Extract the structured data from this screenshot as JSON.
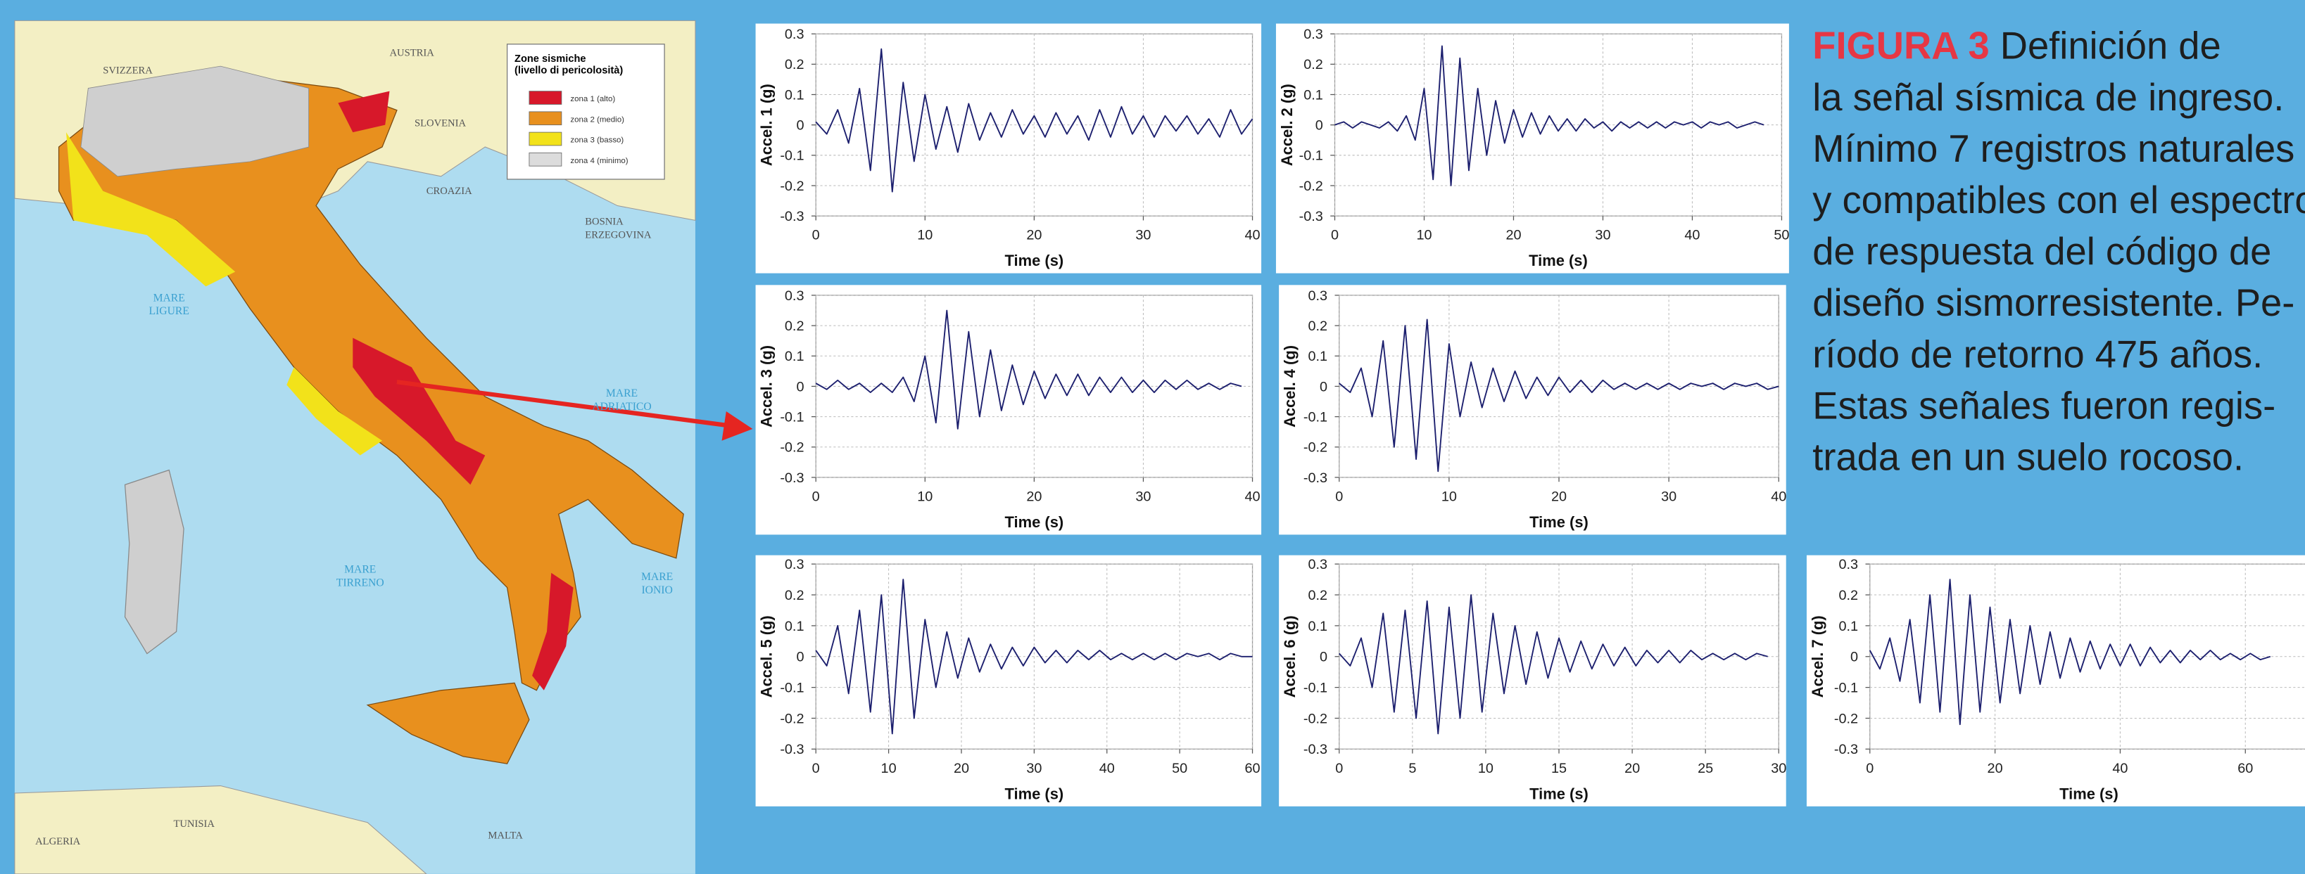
{
  "chart_data": [
    {
      "type": "line",
      "xlabel": "Time (s)",
      "ylabel": "Accel. 1 (g)",
      "color": "#1c1f6e",
      "grid": true,
      "xlim": [
        0,
        40
      ],
      "ylim": [
        -0.3,
        0.3
      ],
      "xticks": [
        0,
        10,
        20,
        30,
        40
      ],
      "yticks": [
        -0.3,
        -0.2,
        -0.1,
        0,
        0.1,
        0.2,
        0.3
      ],
      "x": [
        0,
        1,
        2,
        3,
        4,
        5,
        6,
        7,
        8,
        9,
        10,
        11,
        12,
        13,
        14,
        15,
        16,
        17,
        18,
        19,
        20,
        21,
        22,
        23,
        24,
        25,
        26,
        27,
        28,
        29,
        30,
        31,
        32,
        33,
        34,
        35,
        36,
        37,
        38,
        39,
        40
      ],
      "values": [
        0.01,
        -0.03,
        0.05,
        -0.06,
        0.12,
        -0.15,
        0.25,
        -0.22,
        0.14,
        -0.12,
        0.1,
        -0.08,
        0.06,
        -0.09,
        0.07,
        -0.05,
        0.04,
        -0.04,
        0.05,
        -0.03,
        0.03,
        -0.04,
        0.04,
        -0.03,
        0.03,
        -0.05,
        0.05,
        -0.04,
        0.06,
        -0.03,
        0.03,
        -0.04,
        0.03,
        -0.02,
        0.03,
        -0.03,
        0.02,
        -0.04,
        0.05,
        -0.03,
        0.02
      ]
    },
    {
      "type": "line",
      "xlabel": "Time (s)",
      "ylabel": "Accel. 2 (g)",
      "color": "#1c1f6e",
      "grid": true,
      "xlim": [
        0,
        50
      ],
      "ylim": [
        -0.3,
        0.3
      ],
      "xticks": [
        0,
        10,
        20,
        30,
        40,
        50
      ],
      "yticks": [
        -0.3,
        -0.2,
        -0.1,
        0,
        0.1,
        0.2,
        0.3
      ],
      "x": [
        0,
        1,
        2,
        3,
        4,
        5,
        6,
        7,
        8,
        9,
        10,
        11,
        12,
        13,
        14,
        15,
        16,
        17,
        18,
        19,
        20,
        21,
        22,
        23,
        24,
        25,
        26,
        27,
        28,
        29,
        30,
        31,
        32,
        33,
        34,
        35,
        36,
        37,
        38,
        39,
        40,
        41,
        42,
        43,
        44,
        45,
        46,
        47,
        48
      ],
      "values": [
        0,
        0.01,
        -0.01,
        0.01,
        0,
        -0.01,
        0.01,
        -0.02,
        0.03,
        -0.05,
        0.12,
        -0.18,
        0.26,
        -0.2,
        0.22,
        -0.15,
        0.12,
        -0.1,
        0.08,
        -0.06,
        0.05,
        -0.04,
        0.04,
        -0.03,
        0.03,
        -0.02,
        0.02,
        -0.02,
        0.02,
        -0.01,
        0.01,
        -0.02,
        0.01,
        -0.01,
        0.01,
        -0.01,
        0.01,
        -0.01,
        0.01,
        0,
        0.01,
        -0.01,
        0.01,
        0,
        0.01,
        -0.01,
        0,
        0.01,
        0
      ]
    },
    {
      "type": "line",
      "xlabel": "Time (s)",
      "ylabel": "Accel. 3 (g)",
      "color": "#1c1f6e",
      "grid": true,
      "xlim": [
        0,
        40
      ],
      "ylim": [
        -0.3,
        0.3
      ],
      "xticks": [
        0,
        10,
        20,
        30,
        40
      ],
      "yticks": [
        -0.3,
        -0.2,
        -0.1,
        0,
        0.1,
        0.2,
        0.3
      ],
      "x": [
        0,
        1,
        2,
        3,
        4,
        5,
        6,
        7,
        8,
        9,
        10,
        11,
        12,
        13,
        14,
        15,
        16,
        17,
        18,
        19,
        20,
        21,
        22,
        23,
        24,
        25,
        26,
        27,
        28,
        29,
        30,
        31,
        32,
        33,
        34,
        35,
        36,
        37,
        38,
        39
      ],
      "values": [
        0.01,
        -0.01,
        0.02,
        -0.01,
        0.01,
        -0.02,
        0.01,
        -0.02,
        0.03,
        -0.05,
        0.1,
        -0.12,
        0.25,
        -0.14,
        0.18,
        -0.1,
        0.12,
        -0.08,
        0.07,
        -0.06,
        0.05,
        -0.04,
        0.04,
        -0.03,
        0.04,
        -0.03,
        0.03,
        -0.02,
        0.03,
        -0.02,
        0.02,
        -0.02,
        0.02,
        -0.01,
        0.02,
        -0.01,
        0.01,
        -0.01,
        0.01,
        0
      ]
    },
    {
      "type": "line",
      "xlabel": "Time (s)",
      "ylabel": "Accel. 4 (g)",
      "color": "#1c1f6e",
      "grid": true,
      "xlim": [
        0,
        40
      ],
      "ylim": [
        -0.3,
        0.3
      ],
      "xticks": [
        0,
        10,
        20,
        30,
        40
      ],
      "yticks": [
        -0.3,
        -0.2,
        -0.1,
        0,
        0.1,
        0.2,
        0.3
      ],
      "x": [
        0,
        1,
        2,
        3,
        4,
        5,
        6,
        7,
        8,
        9,
        10,
        11,
        12,
        13,
        14,
        15,
        16,
        17,
        18,
        19,
        20,
        21,
        22,
        23,
        24,
        25,
        26,
        27,
        28,
        29,
        30,
        31,
        32,
        33,
        34,
        35,
        36,
        37,
        38,
        39,
        40
      ],
      "values": [
        0.01,
        -0.02,
        0.06,
        -0.1,
        0.15,
        -0.2,
        0.2,
        -0.24,
        0.22,
        -0.28,
        0.14,
        -0.1,
        0.08,
        -0.07,
        0.06,
        -0.05,
        0.05,
        -0.04,
        0.03,
        -0.03,
        0.03,
        -0.02,
        0.02,
        -0.02,
        0.02,
        -0.01,
        0.01,
        -0.01,
        0.01,
        -0.01,
        0.01,
        -0.01,
        0.01,
        0,
        0.01,
        -0.01,
        0.01,
        0,
        0.01,
        -0.01,
        0
      ]
    },
    {
      "type": "line",
      "xlabel": "Time (s)",
      "ylabel": "Accel. 5 (g)",
      "color": "#1c1f6e",
      "grid": true,
      "xlim": [
        0,
        60
      ],
      "ylim": [
        -0.3,
        0.3
      ],
      "xticks": [
        0,
        10,
        20,
        30,
        40,
        50,
        60
      ],
      "yticks": [
        -0.3,
        -0.2,
        -0.1,
        0,
        0.1,
        0.2,
        0.3
      ],
      "x": [
        0,
        1.5,
        3,
        4.5,
        6,
        7.5,
        9,
        10.5,
        12,
        13.5,
        15,
        16.5,
        18,
        19.5,
        21,
        22.5,
        24,
        25.5,
        27,
        28.5,
        30,
        31.5,
        33,
        34.5,
        36,
        37.5,
        39,
        40.5,
        42,
        43.5,
        45,
        46.5,
        48,
        49.5,
        51,
        52.5,
        54,
        55.5,
        57,
        58.5,
        60
      ],
      "values": [
        0.02,
        -0.03,
        0.1,
        -0.12,
        0.15,
        -0.18,
        0.2,
        -0.25,
        0.25,
        -0.2,
        0.12,
        -0.1,
        0.08,
        -0.07,
        0.06,
        -0.05,
        0.04,
        -0.04,
        0.03,
        -0.03,
        0.03,
        -0.02,
        0.02,
        -0.02,
        0.02,
        -0.01,
        0.02,
        -0.01,
        0.01,
        -0.01,
        0.01,
        -0.01,
        0.01,
        -0.01,
        0.01,
        0,
        0.01,
        -0.01,
        0.01,
        0,
        0
      ]
    },
    {
      "type": "line",
      "xlabel": "Time (s)",
      "ylabel": "Accel. 6 (g)",
      "color": "#1c1f6e",
      "grid": true,
      "xlim": [
        0,
        30
      ],
      "ylim": [
        -0.3,
        0.3
      ],
      "xticks": [
        0,
        5,
        10,
        15,
        20,
        25,
        30
      ],
      "yticks": [
        -0.3,
        -0.2,
        -0.1,
        0,
        0.1,
        0.2,
        0.3
      ],
      "x": [
        0,
        0.75,
        1.5,
        2.25,
        3,
        3.75,
        4.5,
        5.25,
        6,
        6.75,
        7.5,
        8.25,
        9,
        9.75,
        10.5,
        11.25,
        12,
        12.75,
        13.5,
        14.25,
        15,
        15.75,
        16.5,
        17.25,
        18,
        18.75,
        19.5,
        20.25,
        21,
        21.75,
        22.5,
        23.25,
        24,
        24.75,
        25.5,
        26.25,
        27,
        27.75,
        28.5,
        29.25
      ],
      "values": [
        0.01,
        -0.03,
        0.06,
        -0.1,
        0.14,
        -0.18,
        0.15,
        -0.2,
        0.18,
        -0.25,
        0.16,
        -0.2,
        0.2,
        -0.18,
        0.14,
        -0.12,
        0.1,
        -0.09,
        0.08,
        -0.07,
        0.06,
        -0.05,
        0.05,
        -0.04,
        0.04,
        -0.03,
        0.03,
        -0.03,
        0.02,
        -0.02,
        0.02,
        -0.02,
        0.02,
        -0.01,
        0.01,
        -0.01,
        0.01,
        -0.01,
        0.01,
        0
      ]
    },
    {
      "type": "line",
      "xlabel": "Time (s)",
      "ylabel": "Accel. 7 (g)",
      "color": "#1c1f6e",
      "grid": true,
      "xlim": [
        0,
        70
      ],
      "ylim": [
        -0.3,
        0.3
      ],
      "xticks": [
        0,
        20,
        40,
        60
      ],
      "yticks": [
        -0.3,
        -0.2,
        -0.1,
        0,
        0.1,
        0.2,
        0.3
      ],
      "x": [
        0,
        1.6,
        3.2,
        4.8,
        6.4,
        8,
        9.6,
        11.2,
        12.8,
        14.4,
        16,
        17.6,
        19.2,
        20.8,
        22.4,
        24,
        25.6,
        27.2,
        28.8,
        30.4,
        32,
        33.6,
        35.2,
        36.8,
        38.4,
        40,
        41.6,
        43.2,
        44.8,
        46.4,
        48,
        49.6,
        51.2,
        52.8,
        54.4,
        56,
        57.6,
        59.2,
        60.8,
        62.4,
        64
      ],
      "values": [
        0.02,
        -0.04,
        0.06,
        -0.08,
        0.12,
        -0.15,
        0.2,
        -0.18,
        0.25,
        -0.22,
        0.2,
        -0.18,
        0.16,
        -0.15,
        0.12,
        -0.12,
        0.1,
        -0.09,
        0.08,
        -0.07,
        0.06,
        -0.05,
        0.05,
        -0.04,
        0.04,
        -0.03,
        0.04,
        -0.03,
        0.03,
        -0.02,
        0.02,
        -0.02,
        0.02,
        -0.01,
        0.02,
        -0.01,
        0.01,
        -0.01,
        0.01,
        -0.01,
        0
      ]
    }
  ],
  "map": {
    "legend": {
      "title": [
        "Zone sismiche",
        "(livello di pericolosità)"
      ],
      "items": [
        "zona 1 (alto)",
        "zona 2 (medio)",
        "zona 3 (basso)",
        "zona 4 (minimo)"
      ],
      "colors": [
        "#d7182a",
        "#e8901e",
        "#f2e21a",
        "#dcdcdc"
      ]
    },
    "labels": [
      [
        "SVIZZERA"
      ],
      [
        "AUSTRIA"
      ],
      [
        "SLOVENIA"
      ],
      [
        "CROAZIA"
      ],
      [
        "BOSNIA",
        "ERZEGOVINA"
      ],
      [
        "TUNISIA"
      ],
      [
        "ALGERIA"
      ],
      [
        "MALTA"
      ]
    ],
    "seas": [
      [
        "MARE",
        "LIGURE"
      ],
      [
        "MARE",
        "ADRIATICO"
      ],
      [
        "MARE",
        "TIRRENO"
      ],
      [
        "MARE",
        "IONIO"
      ]
    ]
  },
  "caption": {
    "label": "FIGURA 3",
    "lines": [
      " Definición de",
      "la señal sísmica de ingreso.",
      "Mínimo 7 registros naturales",
      "y compatibles con el espectro",
      "de respuesta del código de",
      "diseño sismorresistente. Pe-",
      "ríodo de retorno 475 años.",
      "Estas señales fueron regis-",
      "trada en un suelo rocoso."
    ]
  }
}
